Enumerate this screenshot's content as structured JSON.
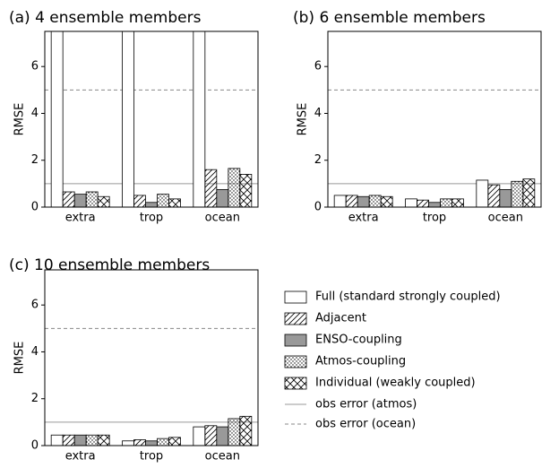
{
  "chart_data": [
    {
      "type": "bar",
      "title": "(a) 4 ensemble members",
      "ylabel": "RMSE",
      "categories": [
        "extra",
        "trop",
        "ocean"
      ],
      "ylim": [
        0,
        7.5
      ],
      "yticks": [
        0,
        2,
        4,
        6
      ],
      "hlines": [
        {
          "value": 1,
          "color": "#999999",
          "dash": "none"
        },
        {
          "value": 5,
          "color": "#888888",
          "dash": "4 3"
        }
      ],
      "series": [
        {
          "color": "#ffffff",
          "hatch": "none",
          "values": [
            7.5,
            7.5,
            7.5
          ]
        },
        {
          "color": "#ffffff",
          "hatch": "diag",
          "values": [
            0.65,
            0.5,
            1.6
          ]
        },
        {
          "color": "#999999",
          "hatch": "none",
          "values": [
            0.55,
            0.2,
            0.75
          ]
        },
        {
          "color": "#ffffff",
          "hatch": "dots",
          "values": [
            0.65,
            0.55,
            1.65
          ]
        },
        {
          "color": "#ffffff",
          "hatch": "cross",
          "values": [
            0.45,
            0.35,
            1.4
          ]
        }
      ]
    },
    {
      "type": "bar",
      "title": "(b) 6 ensemble members",
      "ylabel": "RMSE",
      "categories": [
        "extra",
        "trop",
        "ocean"
      ],
      "ylim": [
        0,
        7.5
      ],
      "yticks": [
        0,
        2,
        4,
        6
      ],
      "hlines": [
        {
          "value": 1,
          "color": "#999999",
          "dash": "none"
        },
        {
          "value": 5,
          "color": "#888888",
          "dash": "4 3"
        }
      ],
      "series": [
        {
          "color": "#ffffff",
          "hatch": "none",
          "values": [
            0.5,
            0.35,
            1.15
          ]
        },
        {
          "color": "#ffffff",
          "hatch": "diag",
          "values": [
            0.5,
            0.3,
            0.95
          ]
        },
        {
          "color": "#999999",
          "hatch": "none",
          "values": [
            0.45,
            0.2,
            0.75
          ]
        },
        {
          "color": "#ffffff",
          "hatch": "dots",
          "values": [
            0.5,
            0.35,
            1.1
          ]
        },
        {
          "color": "#ffffff",
          "hatch": "cross",
          "values": [
            0.45,
            0.35,
            1.2
          ]
        }
      ]
    },
    {
      "type": "bar",
      "title": "(c) 10 ensemble members",
      "ylabel": "RMSE",
      "categories": [
        "extra",
        "trop",
        "ocean"
      ],
      "ylim": [
        0,
        7.5
      ],
      "yticks": [
        0,
        2,
        4,
        6
      ],
      "hlines": [
        {
          "name": "obs error (atmos)",
          "value": 1,
          "color": "#999999",
          "dash": "none"
        },
        {
          "name": "obs error (ocean)",
          "value": 5,
          "color": "#888888",
          "dash": "4 3"
        }
      ],
      "series": [
        {
          "name": "Full (standard strongly coupled)",
          "color": "#ffffff",
          "hatch": "none",
          "values": [
            0.45,
            0.2,
            0.8
          ]
        },
        {
          "name": "Adjacent",
          "color": "#ffffff",
          "hatch": "diag",
          "values": [
            0.45,
            0.25,
            0.85
          ]
        },
        {
          "name": "ENSO-coupling",
          "color": "#999999",
          "hatch": "none",
          "values": [
            0.45,
            0.2,
            0.8
          ]
        },
        {
          "name": "Atmos-coupling",
          "color": "#ffffff",
          "hatch": "dots",
          "values": [
            0.45,
            0.3,
            1.15
          ]
        },
        {
          "name": "Individual (weakly coupled)",
          "color": "#ffffff",
          "hatch": "cross",
          "values": [
            0.45,
            0.35,
            1.25
          ]
        }
      ]
    }
  ]
}
